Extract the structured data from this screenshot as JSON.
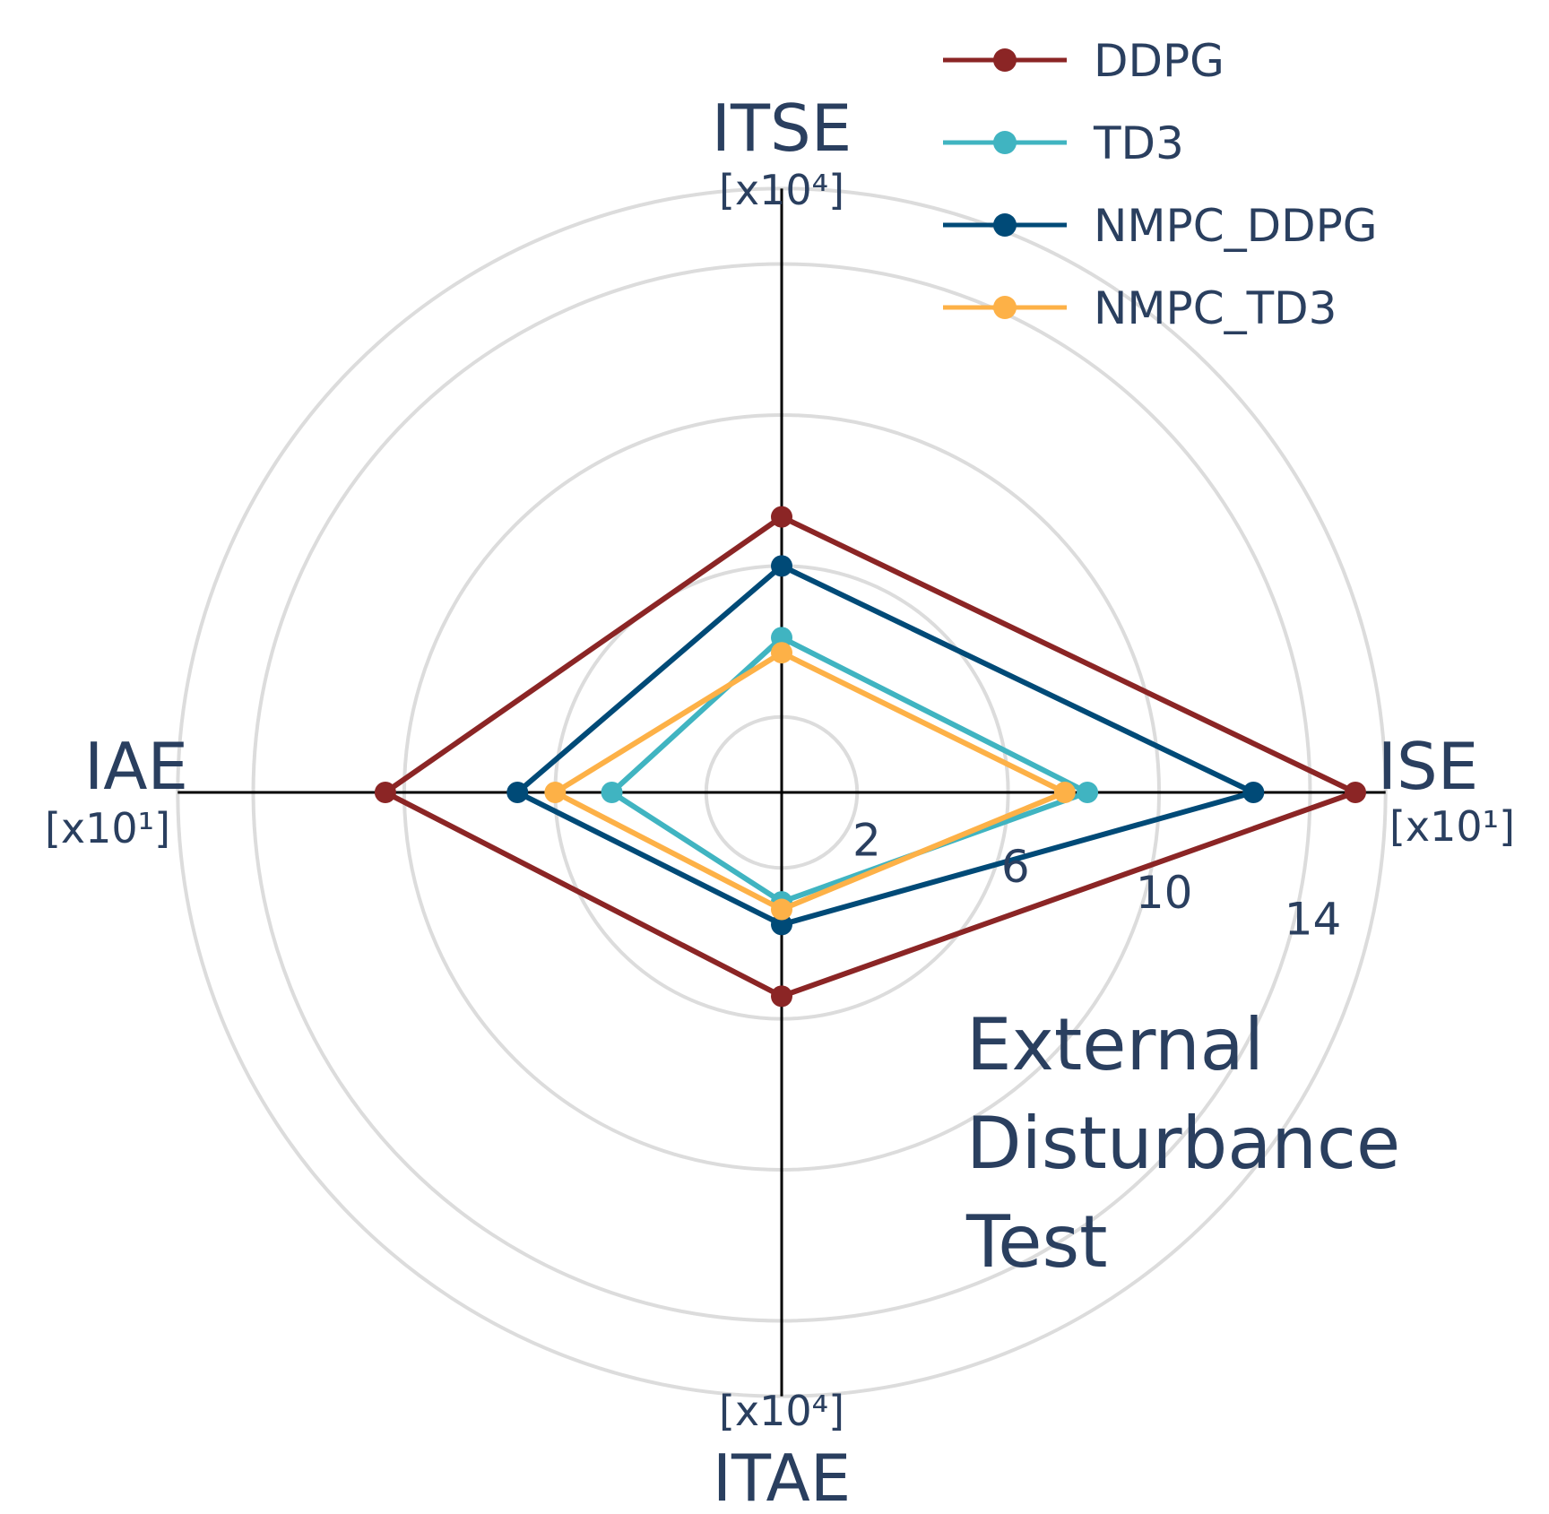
{
  "chart_data": {
    "type": "radar",
    "title": "",
    "axes": [
      {
        "name": "ITSE",
        "unit": "[x10⁴]",
        "direction": "up"
      },
      {
        "name": "ISE",
        "unit": "[x10¹]",
        "direction": "right"
      },
      {
        "name": "ITAE",
        "unit": "[x10⁴]",
        "direction": "down"
      },
      {
        "name": "IAE",
        "unit": "[x10¹]",
        "direction": "left"
      }
    ],
    "radial_range": [
      0,
      16
    ],
    "radial_ticks": [
      2,
      6,
      10,
      14
    ],
    "grid_circles": [
      2,
      6,
      10,
      14,
      16
    ],
    "grid": true,
    "legend_position": "top-right",
    "series": [
      {
        "name": "DDPG",
        "color": "#8b2525",
        "values": {
          "ITSE": 7.3,
          "ISE": 15.2,
          "ITAE": 5.4,
          "IAE": 10.5
        }
      },
      {
        "name": "TD3",
        "color": "#40b4c1",
        "values": {
          "ITSE": 4.1,
          "ISE": 8.1,
          "ITAE": 2.9,
          "IAE": 4.5
        }
      },
      {
        "name": "NMPC_DDPG",
        "color": "#004a77",
        "values": {
          "ITSE": 6.0,
          "ISE": 12.5,
          "ITAE": 3.5,
          "IAE": 7.0
        }
      },
      {
        "name": "NMPC_TD3",
        "color": "#fdb147",
        "values": {
          "ITSE": 3.7,
          "ISE": 7.5,
          "ITAE": 3.1,
          "IAE": 6.0
        }
      }
    ],
    "annotation": {
      "lines": [
        "External",
        "Disturbance",
        "Test"
      ]
    }
  }
}
